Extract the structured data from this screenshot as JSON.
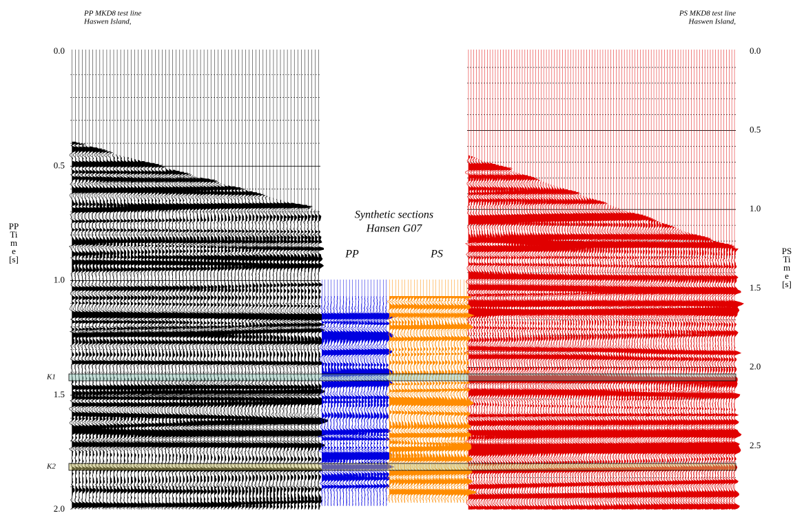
{
  "left_caption": {
    "line1": "PP MKD8 test line",
    "line2": "Haswen Island,"
  },
  "right_caption": {
    "line1": "PS MKD8 test line",
    "line2": "Haswen Island,"
  },
  "center_caption": {
    "line1": "Synthetic sections",
    "line2": "Hansen G07"
  },
  "synthetic_labels": [
    "PP",
    "PS"
  ],
  "left_axis": {
    "title_lines": [
      "PP",
      "Ti",
      "m",
      "e",
      "[s]"
    ],
    "ticks": [
      "0.0",
      "0.5",
      "1.0",
      "1.5",
      "2.0"
    ]
  },
  "right_axis": {
    "title_lines": [
      "PS",
      "Ti",
      "m",
      "e",
      "[s]"
    ],
    "ticks": [
      "0.0",
      "0.5",
      "1.0",
      "1.5",
      "2.0",
      "2.5"
    ]
  },
  "horizons": [
    "K1",
    "K2"
  ]
}
